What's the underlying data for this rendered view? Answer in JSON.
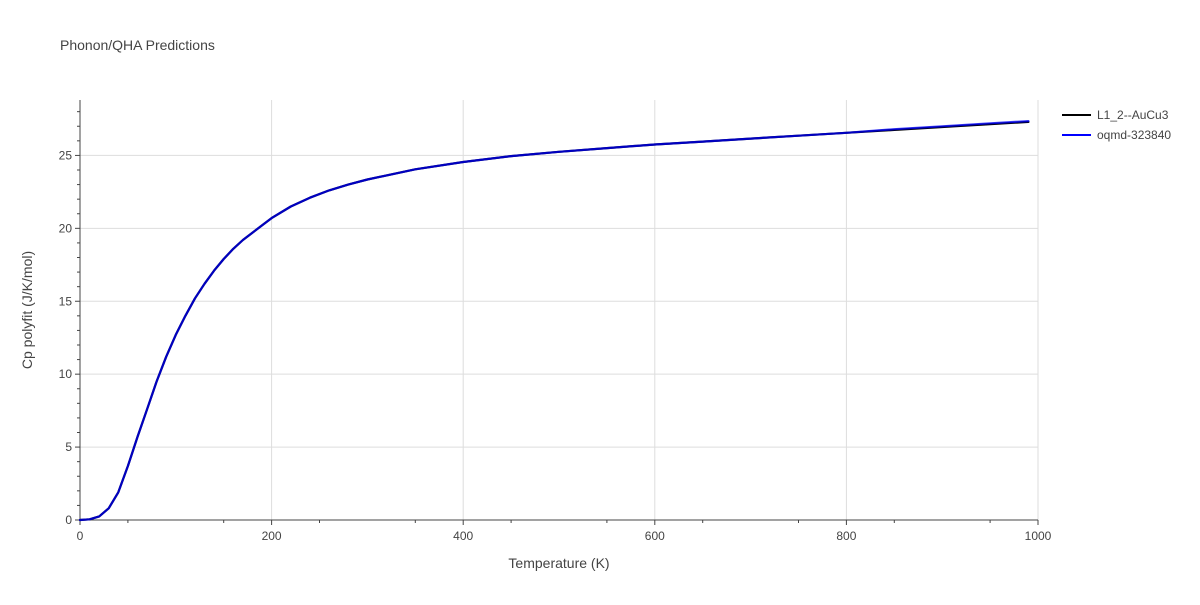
{
  "chart_data": {
    "type": "line",
    "title": "Phonon/QHA Predictions",
    "xlabel": "Temperature (K)",
    "ylabel": "Cp polyfit (J/K/mol)",
    "xlim": [
      0,
      1000
    ],
    "ylim": [
      0,
      28.8
    ],
    "x_ticks": [
      0,
      200,
      400,
      600,
      800,
      1000
    ],
    "y_ticks": [
      0,
      5,
      10,
      15,
      20,
      25
    ],
    "grid": true,
    "legend_position": "top-right",
    "series": [
      {
        "name": "L1_2--AuCu3",
        "color": "#000000",
        "x": [
          0,
          10,
          20,
          30,
          40,
          50,
          60,
          70,
          80,
          90,
          100,
          110,
          120,
          130,
          140,
          150,
          160,
          170,
          180,
          190,
          200,
          220,
          240,
          260,
          280,
          300,
          350,
          400,
          450,
          500,
          550,
          600,
          650,
          700,
          750,
          800,
          850,
          900,
          950,
          990
        ],
        "y": [
          0,
          0.05,
          0.25,
          0.8,
          1.9,
          3.7,
          5.7,
          7.6,
          9.5,
          11.2,
          12.7,
          14.0,
          15.2,
          16.2,
          17.1,
          17.9,
          18.6,
          19.2,
          19.7,
          20.2,
          20.7,
          21.5,
          22.1,
          22.6,
          23.0,
          23.35,
          24.05,
          24.55,
          24.95,
          25.25,
          25.5,
          25.75,
          25.95,
          26.15,
          26.35,
          26.55,
          26.75,
          26.95,
          27.15,
          27.3
        ]
      },
      {
        "name": "oqmd-323840",
        "color": "#0000ff",
        "x": [
          0,
          10,
          20,
          30,
          40,
          50,
          60,
          70,
          80,
          90,
          100,
          110,
          120,
          130,
          140,
          150,
          160,
          170,
          180,
          190,
          200,
          220,
          240,
          260,
          280,
          300,
          350,
          400,
          450,
          500,
          550,
          600,
          650,
          700,
          750,
          800,
          850,
          900,
          950,
          990
        ],
        "y": [
          0,
          0.05,
          0.25,
          0.8,
          1.9,
          3.7,
          5.7,
          7.6,
          9.5,
          11.2,
          12.7,
          14.0,
          15.2,
          16.2,
          17.1,
          17.9,
          18.6,
          19.2,
          19.7,
          20.2,
          20.7,
          21.5,
          22.1,
          22.6,
          23.0,
          23.35,
          24.05,
          24.55,
          24.95,
          25.25,
          25.5,
          25.75,
          25.95,
          26.15,
          26.35,
          26.55,
          26.8,
          27.0,
          27.2,
          27.35
        ]
      }
    ]
  },
  "colors": {
    "text": "#444444",
    "grid": "#dddddd",
    "axis": "#444444"
  }
}
